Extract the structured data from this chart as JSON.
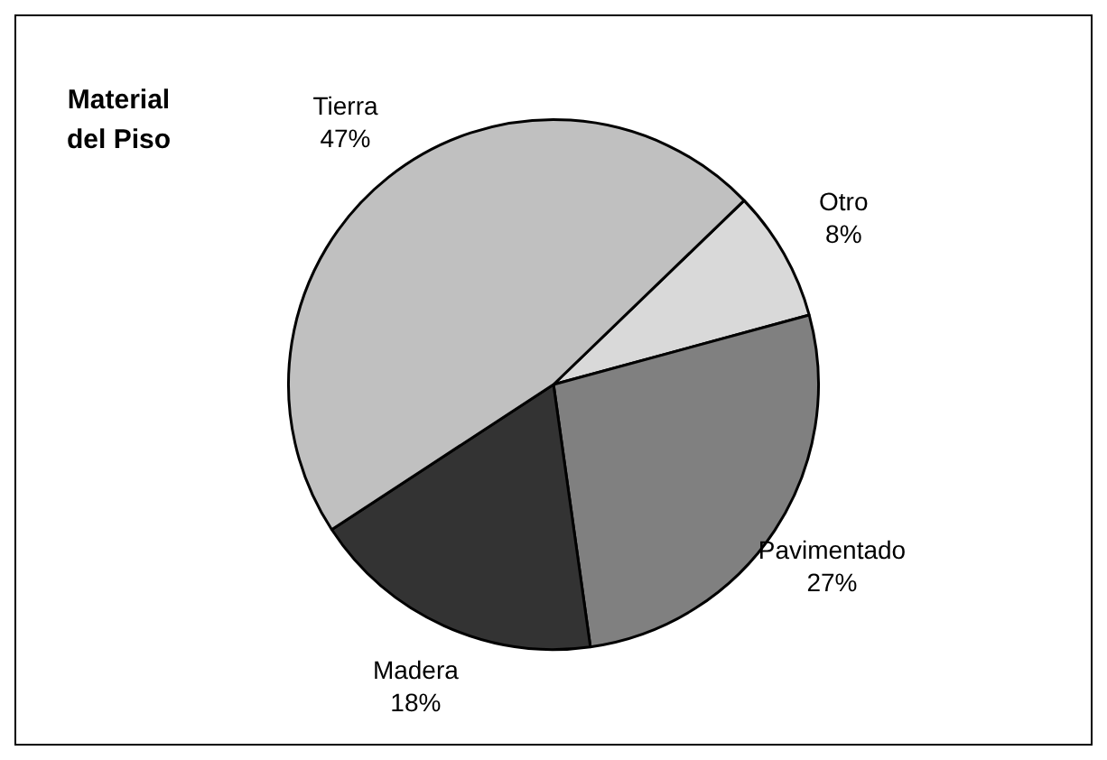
{
  "chart_data": {
    "type": "pie",
    "title": "Material\ndel Piso",
    "categories": [
      "Otro",
      "Pavimentado",
      "Madera",
      "Tierra"
    ],
    "values": [
      8,
      27,
      18,
      47
    ],
    "value_labels": [
      "8%",
      "27%",
      "18%",
      "47%"
    ],
    "colors": [
      "#d9d9d9",
      "#808080",
      "#333333",
      "#c0c0c0"
    ],
    "legend": false
  }
}
